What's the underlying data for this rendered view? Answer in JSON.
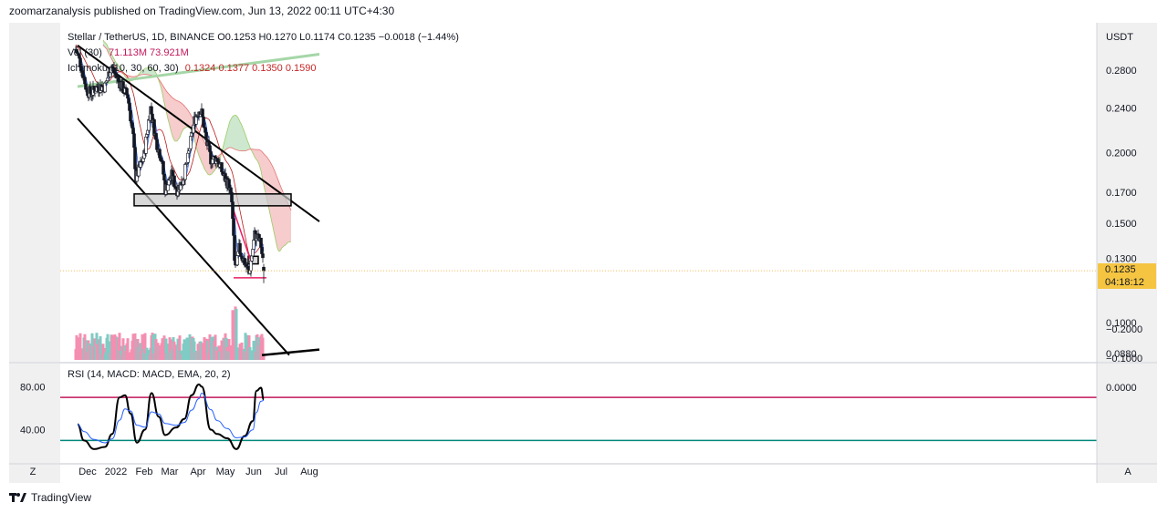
{
  "header": {
    "published_text": "zoomarzanalysis published on TradingView.com, Jun 13, 2022 00:11 UTC+4:30"
  },
  "legend": {
    "line1": "Stellar / TetherUS, 1D, BINANCE  O0.1253  H0.1270  L0.1174  C0.1235  −0.0018 (−1.44%)",
    "vol_label": "Vol (30)",
    "vol_values": "71.113M  73.921M",
    "ichimoku_label": "Ichimoku (10, 30, 60, 30)",
    "ichimoku_values": "0.1324  0.1377  0.1350  0.1590",
    "rsi_label": "RSI (14, MACD: MACD, EMA, 20, 2)"
  },
  "price_badge": {
    "price": "0.1235",
    "countdown": "04:18:12"
  },
  "footer": {
    "brand": "TradingView"
  },
  "axis": {
    "quote": "USDT",
    "z_label": "Z",
    "a_label": "A"
  },
  "colors": {
    "bull": "#26a69a",
    "bear": "#ef5350",
    "candle": "#131722",
    "cloud_bear": "#f5c6c6",
    "cloud_bull": "#c8e6c9",
    "tenkan": "#2962ff",
    "kijun": "#b71c1c",
    "rsi_line": "#000000",
    "rsi_signal": "#2962ff",
    "hline_upper": "#c2185b",
    "hline_lower": "#00897b",
    "support_zone": "#c8c8c8",
    "triangle": "#e91e63",
    "channel": "#000000",
    "uptrend": "#a5d6a7",
    "badge_bg": "#f5c542"
  },
  "chart_data": {
    "type": "candlestick",
    "symbol": "Stellar / TetherUS",
    "timeframe": "1D",
    "exchange": "BINANCE",
    "ohlc_last": {
      "open": 0.1253,
      "high": 0.127,
      "low": 0.1174,
      "close": 0.1235,
      "change": -0.0018,
      "change_pct": -1.44
    },
    "y_scale": "log",
    "y_ticks": [
      0.28,
      0.24,
      0.2,
      0.17,
      0.15,
      0.13,
      0.1,
      0.088
    ],
    "y_tick_labels": [
      "0.2800",
      "0.2400",
      "0.2000",
      "0.1700",
      "0.1500",
      "0.1300",
      "0.1000",
      "0.0880"
    ],
    "x_ticks": [
      "Dec",
      "2022",
      "Feb",
      "Mar",
      "Apr",
      "May",
      "Jun",
      "Jul",
      "Aug"
    ],
    "x_tick_dates": [
      "2021-12-01",
      "2022-01-01",
      "2022-02-01",
      "2022-03-01",
      "2022-04-01",
      "2022-05-01",
      "2022-06-01",
      "2022-07-01",
      "2022-08-01"
    ],
    "price_anchors": [
      [
        "2021-11-18",
        0.305
      ],
      [
        "2021-11-24",
        0.285
      ],
      [
        "2021-11-30",
        0.258
      ],
      [
        "2021-12-05",
        0.255
      ],
      [
        "2021-12-12",
        0.262
      ],
      [
        "2021-12-20",
        0.262
      ],
      [
        "2021-12-27",
        0.285
      ],
      [
        "2022-01-04",
        0.268
      ],
      [
        "2022-01-10",
        0.258
      ],
      [
        "2022-01-14",
        0.252
      ],
      [
        "2022-01-20",
        0.212
      ],
      [
        "2022-01-23",
        0.18
      ],
      [
        "2022-01-27",
        0.188
      ],
      [
        "2022-02-01",
        0.198
      ],
      [
        "2022-02-08",
        0.24
      ],
      [
        "2022-02-14",
        0.21
      ],
      [
        "2022-02-20",
        0.195
      ],
      [
        "2022-02-24",
        0.172
      ],
      [
        "2022-03-03",
        0.182
      ],
      [
        "2022-03-09",
        0.172
      ],
      [
        "2022-03-15",
        0.178
      ],
      [
        "2022-03-21",
        0.195
      ],
      [
        "2022-03-28",
        0.228
      ],
      [
        "2022-04-02",
        0.238
      ],
      [
        "2022-04-05",
        0.235
      ],
      [
        "2022-04-10",
        0.21
      ],
      [
        "2022-04-15",
        0.195
      ],
      [
        "2022-04-22",
        0.195
      ],
      [
        "2022-04-29",
        0.182
      ],
      [
        "2022-05-05",
        0.175
      ],
      [
        "2022-05-08",
        0.163
      ],
      [
        "2022-05-11",
        0.128
      ],
      [
        "2022-05-13",
        0.125
      ],
      [
        "2022-05-16",
        0.135
      ],
      [
        "2022-05-22",
        0.128
      ],
      [
        "2022-05-27",
        0.122
      ],
      [
        "2022-05-31",
        0.135
      ],
      [
        "2022-06-02",
        0.143
      ],
      [
        "2022-06-07",
        0.14
      ],
      [
        "2022-06-09",
        0.137
      ],
      [
        "2022-06-12",
        0.1235
      ]
    ],
    "support_zone": {
      "from": "2022-01-21",
      "to": "2022-07-12",
      "low": 0.161,
      "high": 0.169
    },
    "small_zone": {
      "from": "2022-05-26",
      "to": "2022-06-06",
      "low": 0.127,
      "high": 0.131
    },
    "falling_wedge": {
      "top": [
        [
          "2022-05-10",
          0.158
        ],
        [
          "2022-05-30",
          0.127
        ]
      ],
      "bottom": [
        [
          "2022-05-10",
          0.12
        ],
        [
          "2022-06-15",
          0.12
        ]
      ]
    },
    "channel_upper": [
      [
        "2021-11-20",
        0.31
      ],
      [
        "2022-08-12",
        0.151
      ]
    ],
    "channel_lower": [
      [
        "2021-11-20",
        0.23
      ],
      [
        "2022-07-10",
        0.0875
      ]
    ],
    "uptrend_line": [
      [
        "2021-11-20",
        0.262
      ],
      [
        "2022-08-12",
        0.299
      ]
    ],
    "support_line": [
      [
        "2022-06-10",
        0.0875
      ],
      [
        "2022-08-12",
        0.0895
      ]
    ],
    "rsi": {
      "y_ticks": [
        80,
        40
      ],
      "y_tick_labels": [
        "80.00",
        "40.00"
      ],
      "upper_band": 70,
      "lower_band": 30,
      "anchors": [
        [
          "2021-11-20",
          45
        ],
        [
          "2021-11-27",
          30
        ],
        [
          "2021-12-08",
          22
        ],
        [
          "2021-12-20",
          24
        ],
        [
          "2021-12-28",
          36
        ],
        [
          "2022-01-05",
          70
        ],
        [
          "2022-01-11",
          72
        ],
        [
          "2022-01-17",
          55
        ],
        [
          "2022-01-24",
          28
        ],
        [
          "2022-02-02",
          40
        ],
        [
          "2022-02-09",
          74
        ],
        [
          "2022-02-17",
          52
        ],
        [
          "2022-02-24",
          35
        ],
        [
          "2022-03-08",
          42
        ],
        [
          "2022-03-17",
          50
        ],
        [
          "2022-03-25",
          72
        ],
        [
          "2022-04-02",
          82
        ],
        [
          "2022-04-05",
          80
        ],
        [
          "2022-04-15",
          40
        ],
        [
          "2022-04-22",
          36
        ],
        [
          "2022-05-03",
          32
        ],
        [
          "2022-05-13",
          22
        ],
        [
          "2022-05-22",
          34
        ],
        [
          "2022-05-31",
          48
        ],
        [
          "2022-06-04",
          76
        ],
        [
          "2022-06-09",
          79
        ],
        [
          "2022-06-12",
          68
        ]
      ]
    },
    "macd": {
      "y_ticks": [
        0.0,
        -0.1,
        -0.2
      ],
      "y_tick_labels": [
        "0.0000",
        "−0.1000",
        "−0.2000"
      ]
    }
  }
}
